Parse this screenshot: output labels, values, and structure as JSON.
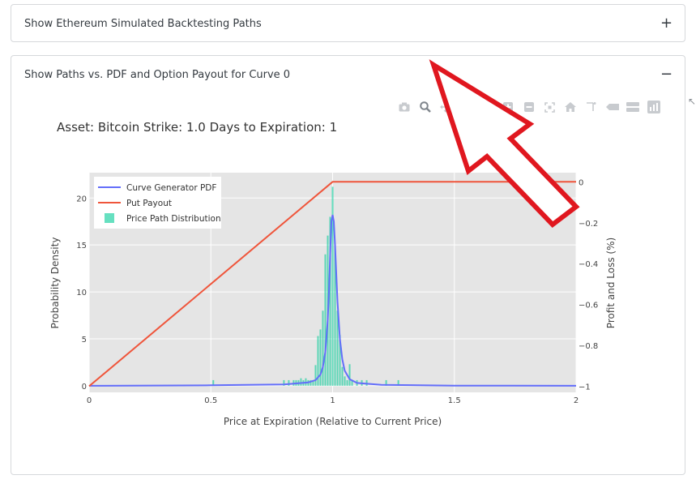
{
  "accordion": {
    "item1": {
      "title": "Show Ethereum Simulated Backtesting Paths",
      "toggle": "+"
    },
    "item2": {
      "title": "Show Paths vs. PDF and Option Payout for Curve 0",
      "toggle": "−"
    }
  },
  "modebar": {
    "icons": [
      "camera-icon",
      "zoom-icon",
      "pan-icon",
      "box-select-icon",
      "lasso-icon",
      "zoom-in-icon",
      "zoom-out-icon",
      "autoscale-icon",
      "reset-axes-icon",
      "spike-lines-icon",
      "hover-closest-icon",
      "hover-compare-icon",
      "plotly-logo-icon"
    ]
  },
  "colors": {
    "pdf": "#636efa",
    "payout": "#ef553b",
    "hist": "#00cc96",
    "plot_bg": "#e5e5e5",
    "arrow": "#e0171f"
  },
  "chart_data": {
    "type": "line",
    "title": "Asset: Bitcoin Strike: 1.0 Days to Expiration: 1",
    "xlabel": "Price at Expiration (Relative to Current Price)",
    "ylabel": "Probability Density",
    "y2label": "Profit and Loss (%)",
    "xlim": [
      0,
      2
    ],
    "ylim": [
      -0.7,
      22.7
    ],
    "y2lim": [
      -1.03,
      0.045
    ],
    "x_ticks": [
      0,
      0.5,
      1,
      1.5,
      2
    ],
    "x_tick_labels": [
      "0",
      "0.5",
      "1",
      "1.5",
      "2"
    ],
    "y_ticks": [
      0,
      5,
      10,
      15,
      20
    ],
    "y_tick_labels": [
      "0",
      "5",
      "10",
      "15",
      "20"
    ],
    "y2_ticks": [
      0,
      -0.2,
      -0.4,
      -0.6,
      -0.8,
      -1
    ],
    "y2_tick_labels": [
      "0",
      "−0.2",
      "−0.4",
      "−0.6",
      "−0.8",
      "−1"
    ],
    "legend": {
      "placement": "top-left",
      "entries": [
        "Curve Generator PDF",
        "Put Payout",
        "Price Path Distribution"
      ]
    },
    "series": [
      {
        "name": "Curve Generator PDF",
        "type": "line",
        "axis": "y",
        "x": [
          0,
          0.5,
          0.8,
          0.9,
          0.93,
          0.95,
          0.96,
          0.97,
          0.98,
          0.985,
          0.99,
          0.995,
          1.0,
          1.005,
          1.01,
          1.015,
          1.02,
          1.03,
          1.04,
          1.05,
          1.07,
          1.1,
          1.2,
          1.5,
          2
        ],
        "y": [
          0,
          0.05,
          0.15,
          0.35,
          0.6,
          1.2,
          2.0,
          3.6,
          7.0,
          10.0,
          14.0,
          17.5,
          18.2,
          17.5,
          15.0,
          12.0,
          9.0,
          5.0,
          2.8,
          1.6,
          0.7,
          0.3,
          0.1,
          0.02,
          0
        ]
      },
      {
        "name": "Put Payout",
        "type": "line",
        "axis": "y2",
        "x": [
          0,
          1.0,
          2
        ],
        "y": [
          -1,
          0,
          0
        ]
      },
      {
        "name": "Price Path Distribution",
        "type": "bar",
        "axis": "y",
        "bin_width": 0.006,
        "x": [
          0.51,
          0.8,
          0.82,
          0.84,
          0.85,
          0.86,
          0.87,
          0.88,
          0.89,
          0.9,
          0.91,
          0.92,
          0.93,
          0.94,
          0.95,
          0.96,
          0.97,
          0.98,
          0.99,
          1.0,
          1.01,
          1.02,
          1.03,
          1.04,
          1.05,
          1.06,
          1.07,
          1.08,
          1.1,
          1.12,
          1.14,
          1.22,
          1.27
        ],
        "y": [
          0.6,
          0.6,
          0.6,
          0.6,
          0.6,
          0.6,
          0.8,
          0.6,
          0.8,
          0.6,
          0.6,
          0.6,
          2.2,
          5.3,
          6.0,
          8.0,
          14.0,
          16.0,
          18.0,
          21.2,
          15.0,
          8.0,
          5.4,
          2.0,
          1.0,
          0.6,
          2.3,
          0.6,
          0.6,
          0.6,
          0.6,
          0.6,
          0.6
        ]
      }
    ]
  }
}
